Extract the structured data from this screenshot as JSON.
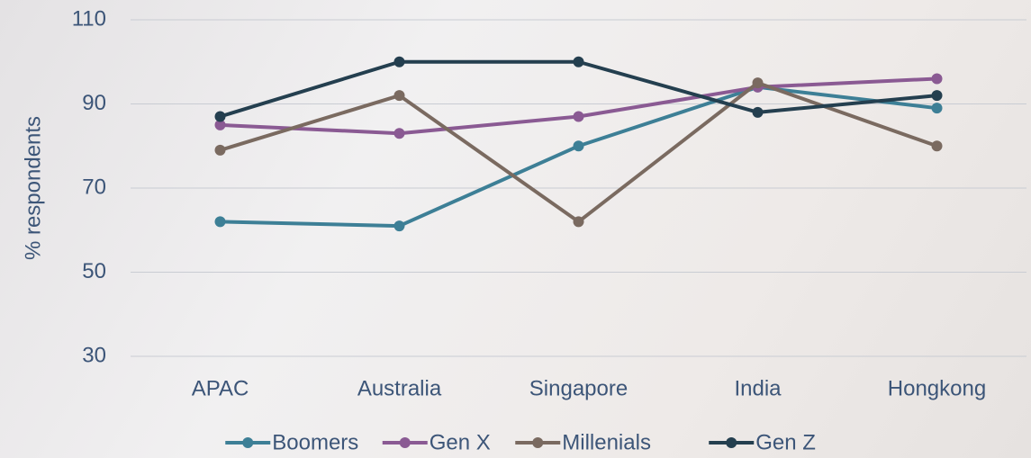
{
  "chart_data": {
    "type": "line",
    "y_label": "% respondents",
    "categories": [
      "APAC",
      "Australia",
      "Singapore",
      "India",
      "Hongkong"
    ],
    "series": [
      {
        "name": "Boomers",
        "color": "#3d7f96",
        "values": [
          62,
          61,
          80,
          94,
          89
        ]
      },
      {
        "name": "Gen X",
        "color": "#8a5a93",
        "values": [
          85,
          83,
          87,
          94,
          96
        ]
      },
      {
        "name": "Millenials",
        "color": "#7a6a60",
        "values": [
          79,
          92,
          62,
          95,
          80
        ]
      },
      {
        "name": "Gen Z",
        "color": "#243f4f",
        "values": [
          87,
          100,
          100,
          88,
          92
        ]
      }
    ],
    "ylim": [
      30,
      110
    ],
    "yticks": [
      30,
      50,
      70,
      90,
      110
    ],
    "grid": true,
    "legend": "bottom"
  }
}
